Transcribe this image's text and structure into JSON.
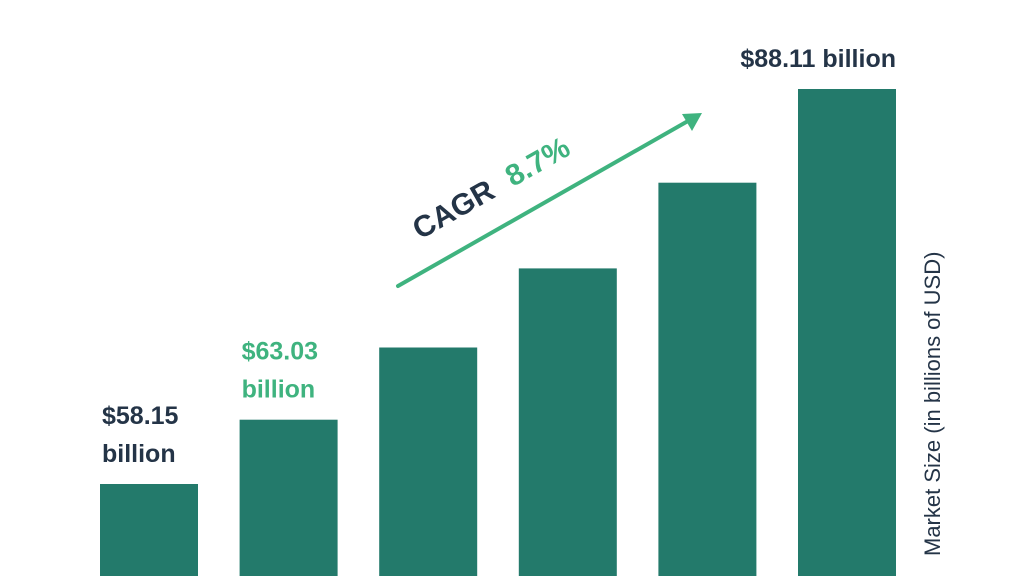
{
  "chart_data": {
    "type": "bar",
    "categories": [
      "",
      "",
      "",
      "",
      "",
      ""
    ],
    "values": [
      58.15,
      63.03,
      68.5,
      74.5,
      81.0,
      88.11
    ],
    "ylabel": "Market Size (in billions of USD)",
    "ylim": [
      0,
      90
    ],
    "grid": false,
    "legend": "none",
    "bar_color": "#237a6b",
    "annotations": [
      {
        "index": 0,
        "lines": [
          "$58.15",
          "billion"
        ],
        "color": "#243447"
      },
      {
        "index": 1,
        "lines": [
          "$63.03",
          "billion"
        ],
        "color": "#3fb37f"
      },
      {
        "index": 5,
        "lines": [
          "$88.11 billion"
        ],
        "color": "#243447"
      }
    ],
    "cagr": {
      "label": "CAGR",
      "value": "8.7%",
      "label_color": "#243447",
      "value_color": "#3fb37f",
      "arrow_color": "#3fb37f"
    }
  }
}
